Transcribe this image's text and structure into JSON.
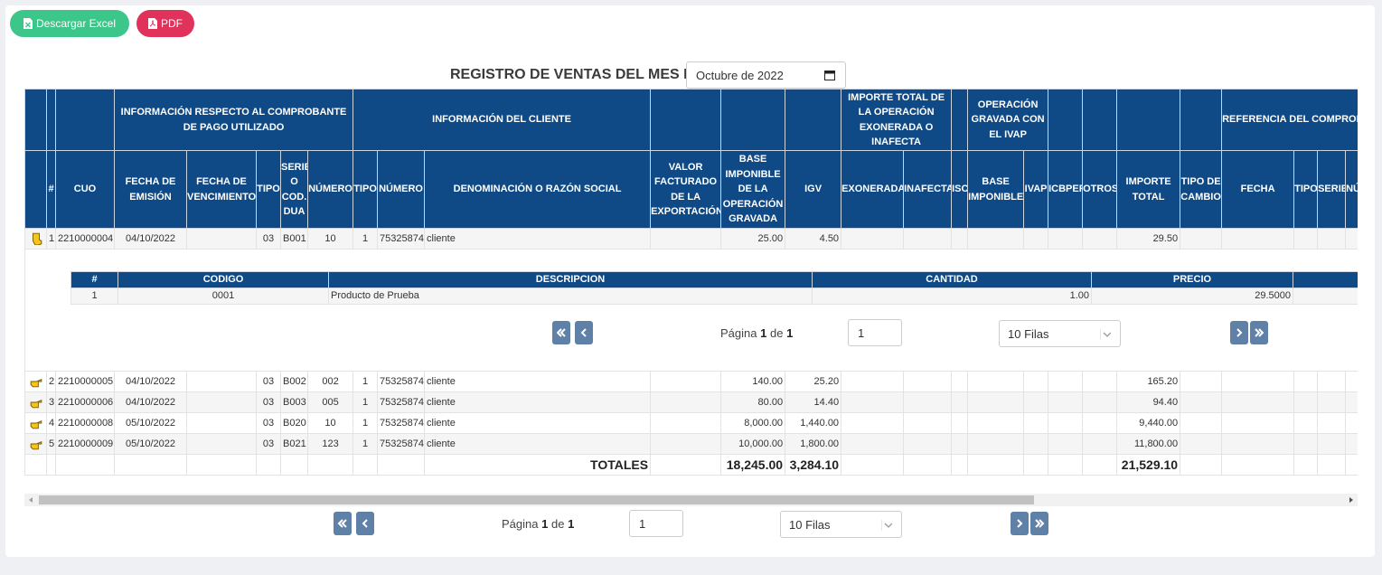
{
  "buttons": {
    "excel": "Descargar Excel",
    "pdf": "PDF"
  },
  "title": "REGISTRO DE VENTAS DEL MES DE",
  "month_input": "Octubre de 2022",
  "group_headers": [
    "INFORMACIÓN RESPECTO AL COMPROBANTE DE PAGO UTILIZADO",
    "INFORMACIÓN DEL CLIENTE",
    "IMPORTE TOTAL DE LA OPERACIÓN EXONERADA O INAFECTA",
    "OPERACIÓN GRAVADA CON EL IVAP",
    "REFERENCIA DEL COMPROBANTE DE PAGO ORIGINAL QUE SE MODIFICA"
  ],
  "column_headers": [
    "#",
    "CUO",
    "FECHA DE EMISIÓN",
    "FECHA DE VENCIMIENTO",
    "TIPO",
    "SERIE O COD. DUA",
    "NÚMERO",
    "TIPO",
    "NÚMERO",
    "DENOMINACIÓN O RAZÓN SOCIAL",
    "VALOR FACTURADO DE LA EXPORTACIÓN",
    "BASE IMPONIBLE DE LA OPERACIÓN GRAVADA",
    "IGV",
    "EXONERADA",
    "INAFECTA",
    "ISC",
    "BASE IMPONIBLE",
    "IVAP",
    "ICBPER",
    "OTROS",
    "IMPORTE TOTAL",
    "TIPO DE CAMBIO",
    "FECHA",
    "TIPO",
    "SERIE",
    "NÚMERO"
  ],
  "rows": [
    {
      "n": "1",
      "cuo": "2210000004",
      "fecha_emision": "04/10/2022",
      "tipo": "03",
      "serie": "B001",
      "numero": "10",
      "cliente_tipo": "1",
      "cliente_numero": "75325874",
      "denominacion": "cliente",
      "base_imponible": "25.00",
      "igv": "4.50",
      "importe_total": "29.50"
    },
    {
      "n": "2",
      "cuo": "2210000005",
      "fecha_emision": "04/10/2022",
      "tipo": "03",
      "serie": "B002",
      "numero": "002",
      "cliente_tipo": "1",
      "cliente_numero": "75325874",
      "denominacion": "cliente",
      "base_imponible": "140.00",
      "igv": "25.20",
      "importe_total": "165.20"
    },
    {
      "n": "3",
      "cuo": "2210000006",
      "fecha_emision": "04/10/2022",
      "tipo": "03",
      "serie": "B003",
      "numero": "005",
      "cliente_tipo": "1",
      "cliente_numero": "75325874",
      "denominacion": "cliente",
      "base_imponible": "80.00",
      "igv": "14.40",
      "importe_total": "94.40"
    },
    {
      "n": "4",
      "cuo": "2210000008",
      "fecha_emision": "05/10/2022",
      "tipo": "03",
      "serie": "B020",
      "numero": "10",
      "cliente_tipo": "1",
      "cliente_numero": "75325874",
      "denominacion": "cliente",
      "base_imponible": "8,000.00",
      "igv": "1,440.00",
      "importe_total": "9,440.00"
    },
    {
      "n": "5",
      "cuo": "2210000009",
      "fecha_emision": "05/10/2022",
      "tipo": "03",
      "serie": "B021",
      "numero": "123",
      "cliente_tipo": "1",
      "cliente_numero": "75325874",
      "denominacion": "cliente",
      "base_imponible": "10,000.00",
      "igv": "1,800.00",
      "importe_total": "11,800.00"
    }
  ],
  "totals": {
    "denominacion": "TOTALES",
    "base_imponible": "18,245.00",
    "igv": "3,284.10",
    "importe_total": "21,529.10"
  },
  "detail": {
    "headers": [
      "#",
      "CODIGO",
      "DESCRIPCION",
      "CANTIDAD",
      "PRECIO"
    ],
    "rows": [
      [
        "1",
        "0001",
        "Producto de Prueba",
        "1.00",
        "29.5000"
      ]
    ],
    "pagination": {
      "label": "Página",
      "page": "1",
      "of": "de",
      "total": "1",
      "input": "1",
      "rows": "10 Filas"
    }
  },
  "pagination": {
    "label": "Página",
    "page": "1",
    "of": "de",
    "total": "1",
    "input": "1",
    "rows": "10 Filas"
  }
}
